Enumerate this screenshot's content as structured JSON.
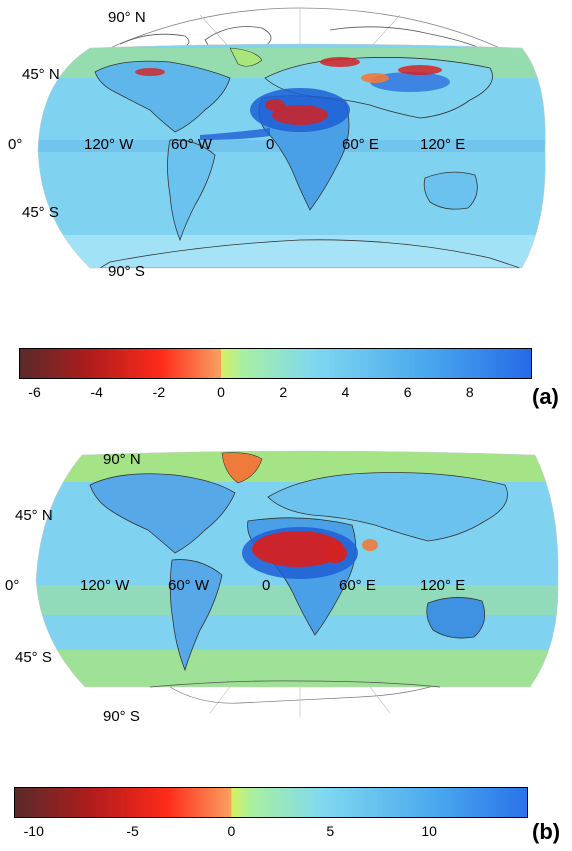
{
  "panel_a": {
    "tag": "(a)",
    "lat_labels": {
      "n90": "90° N",
      "n45": "45° N",
      "eq": "0°",
      "s45": "45° S",
      "s90": "90° S"
    },
    "lon_labels": {
      "w120": "120° W",
      "w60": "60° W",
      "zero": "0",
      "e60": "60° E",
      "e120": "120° E"
    },
    "colorbar": {
      "ticks": [
        "-6",
        "-4",
        "-2",
        "0",
        "2",
        "4",
        "6",
        "8"
      ],
      "range": [
        -6.5,
        10
      ]
    }
  },
  "panel_b": {
    "tag": "(b)",
    "lat_labels": {
      "n90": "90° N",
      "n45": "45° N",
      "eq": "0°",
      "s45": "45° S",
      "s90": "90° S"
    },
    "lon_labels": {
      "w120": "120° W",
      "w60": "60° W",
      "zero": "0",
      "e60": "60° E",
      "e120": "120° E"
    },
    "colorbar": {
      "ticks": [
        "-10",
        "-5",
        "0",
        "5",
        "10"
      ],
      "range": [
        -11,
        15
      ]
    }
  },
  "colors": {
    "ocean": "#7fd3f0",
    "ocean_light": "#a6e3f7",
    "green": "#a8e57a",
    "land_blue": "#56a8e8",
    "strong_blue": "#1f5fd6",
    "red": "#d42222",
    "orange": "#f07a3c"
  }
}
